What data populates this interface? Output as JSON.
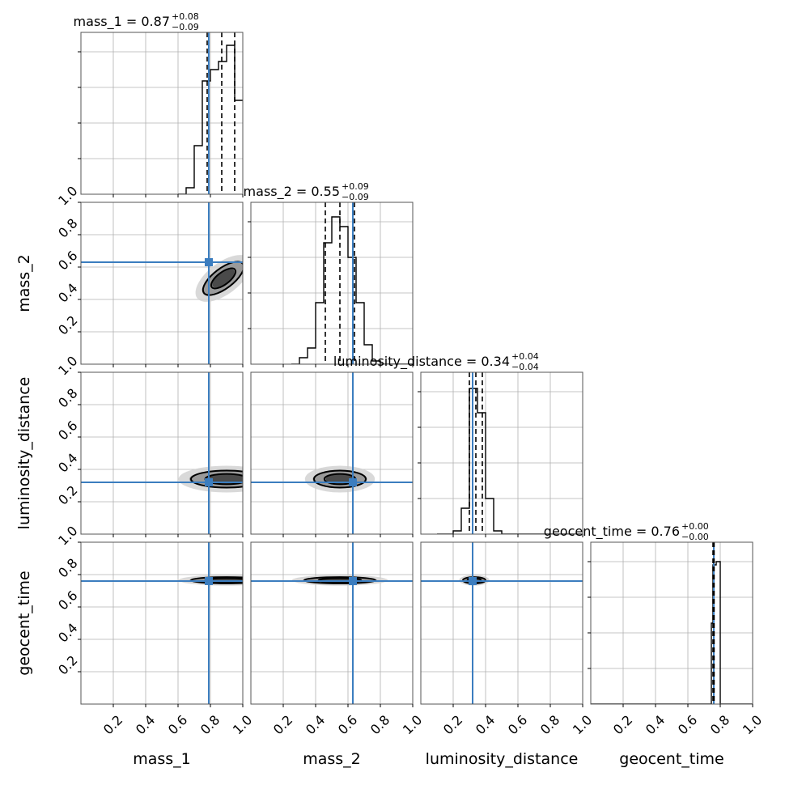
{
  "chart_data": {
    "type": "corner",
    "parameters": [
      "mass_1",
      "mass_2",
      "luminosity_distance",
      "geocent_time"
    ],
    "axis_range": [
      0,
      1
    ],
    "tick_labels": [
      "0.2",
      "0.4",
      "0.6",
      "0.8",
      "1.0"
    ],
    "grid": true,
    "truth_color": "#3b7dbf",
    "titles": [
      {
        "parameter": "mass_1",
        "text": "mass_1 = 0.87",
        "upper": "+0.08",
        "lower": "−0.09"
      },
      {
        "parameter": "mass_2",
        "text": "mass_2 = 0.55",
        "upper": "+0.09",
        "lower": "−0.09"
      },
      {
        "parameter": "luminosity_distance",
        "text": "luminosity_distance = 0.34",
        "upper": "+0.04",
        "lower": "−0.04"
      },
      {
        "parameter": "geocent_time",
        "text": "geocent_time = 0.76",
        "upper": "+0.00",
        "lower": "−0.00"
      }
    ],
    "truths": [
      0.79,
      0.63,
      0.32,
      0.76
    ],
    "quantiles": [
      [
        0.78,
        0.87,
        0.95
      ],
      [
        0.46,
        0.55,
        0.64
      ],
      [
        0.3,
        0.34,
        0.38
      ],
      [
        0.755,
        0.76,
        0.762
      ]
    ],
    "histograms": [
      {
        "edges": [
          0.6,
          0.65,
          0.7,
          0.75,
          0.8,
          0.85,
          0.9,
          0.95,
          1.0
        ],
        "counts": [
          0,
          0.04,
          0.3,
          0.7,
          0.77,
          0.82,
          0.92,
          0.58
        ]
      },
      {
        "edges": [
          0.25,
          0.3,
          0.35,
          0.4,
          0.45,
          0.5,
          0.55,
          0.6,
          0.65,
          0.7,
          0.75,
          0.8,
          1.0
        ],
        "counts": [
          0,
          0.04,
          0.1,
          0.38,
          0.75,
          0.91,
          0.85,
          0.66,
          0.38,
          0.12,
          0.02,
          0
        ]
      },
      {
        "edges": [
          0.1,
          0.2,
          0.25,
          0.3,
          0.35,
          0.4,
          0.45,
          0.5,
          1.0
        ],
        "counts": [
          0,
          0.02,
          0.16,
          0.9,
          0.75,
          0.22,
          0.02,
          0
        ]
      },
      {
        "edges": [
          0.0,
          0.745,
          0.755,
          0.775,
          0.8,
          1.0
        ],
        "counts": [
          0,
          0.5,
          0.86,
          0.88,
          0
        ]
      }
    ],
    "contours": [
      {
        "x_param": "mass_1",
        "y_param": "mass_2",
        "cx": 0.88,
        "cy": 0.53,
        "rx": 0.15,
        "ry": 0.055,
        "angle": -37
      },
      {
        "x_param": "mass_1",
        "y_param": "luminosity_distance",
        "cx": 0.9,
        "cy": 0.34,
        "rx": 0.22,
        "ry": 0.045,
        "angle": 0
      },
      {
        "x_param": "mass_2",
        "y_param": "luminosity_distance",
        "cx": 0.55,
        "cy": 0.34,
        "rx": 0.16,
        "ry": 0.045,
        "angle": 0
      },
      {
        "x_param": "mass_1",
        "y_param": "geocent_time",
        "cx": 0.9,
        "cy": 0.765,
        "rx": 0.22,
        "ry": 0.012,
        "angle": 0
      },
      {
        "x_param": "mass_2",
        "y_param": "geocent_time",
        "cx": 0.55,
        "cy": 0.765,
        "rx": 0.22,
        "ry": 0.012,
        "angle": 0
      },
      {
        "x_param": "luminosity_distance",
        "y_param": "geocent_time",
        "cx": 0.33,
        "cy": 0.765,
        "rx": 0.07,
        "ry": 0.012,
        "angle": 0
      }
    ]
  }
}
